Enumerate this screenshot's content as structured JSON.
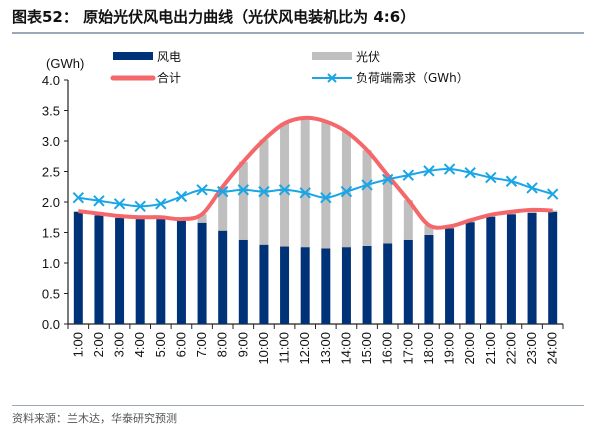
{
  "title": "图表52： 原始光伏风电出力曲线（光伏风电装机比为 4:6）",
  "source": "资料来源：兰木达，华泰研究预测",
  "colors": {
    "wind": "#003278",
    "solar": "#bfbfbf",
    "total": "#f4676a",
    "demand": "#1aa6e6"
  },
  "chart_data": {
    "type": "bar",
    "stacked": true,
    "unit_label": "(GWh)",
    "ylim": [
      0,
      4.0
    ],
    "yticks": [
      "0.0",
      "0.5",
      "1.0",
      "1.5",
      "2.0",
      "2.5",
      "3.0",
      "3.5",
      "4.0"
    ],
    "grid": false,
    "legend_placement": "top",
    "categories": [
      "1:00",
      "2:00",
      "3:00",
      "4:00",
      "5:00",
      "6:00",
      "7:00",
      "8:00",
      "9:00",
      "10:00",
      "11:00",
      "12:00",
      "13:00",
      "14:00",
      "15:00",
      "16:00",
      "17:00",
      "18:00",
      "19:00",
      "20:00",
      "21:00",
      "22:00",
      "23:00",
      "24:00"
    ],
    "series": [
      {
        "name": "风电",
        "kind": "bar",
        "values": [
          1.84,
          1.78,
          1.74,
          1.72,
          1.72,
          1.69,
          1.66,
          1.53,
          1.38,
          1.3,
          1.27,
          1.26,
          1.24,
          1.26,
          1.28,
          1.32,
          1.38,
          1.46,
          1.57,
          1.67,
          1.76,
          1.8,
          1.82,
          1.84
        ]
      },
      {
        "name": "光伏",
        "kind": "bar",
        "values": [
          0.01,
          0.03,
          0.03,
          0.03,
          0.03,
          0.03,
          0.14,
          0.72,
          1.28,
          1.72,
          2.02,
          2.12,
          2.08,
          1.89,
          1.57,
          1.12,
          0.65,
          0.16,
          0.03,
          0.03,
          0.03,
          0.04,
          0.05,
          0.02
        ]
      },
      {
        "name": "合计",
        "kind": "line",
        "values": [
          1.85,
          1.81,
          1.77,
          1.75,
          1.75,
          1.72,
          1.8,
          2.25,
          2.66,
          3.02,
          3.29,
          3.38,
          3.32,
          3.15,
          2.85,
          2.44,
          2.03,
          1.62,
          1.6,
          1.7,
          1.79,
          1.84,
          1.87,
          1.86
        ]
      },
      {
        "name": "负荷端需求（GWh）",
        "kind": "line-marker",
        "values": [
          2.07,
          2.02,
          1.97,
          1.93,
          1.97,
          2.09,
          2.2,
          2.17,
          2.2,
          2.17,
          2.2,
          2.15,
          2.07,
          2.17,
          2.28,
          2.37,
          2.44,
          2.51,
          2.54,
          2.48,
          2.4,
          2.34,
          2.23,
          2.13
        ]
      }
    ]
  }
}
